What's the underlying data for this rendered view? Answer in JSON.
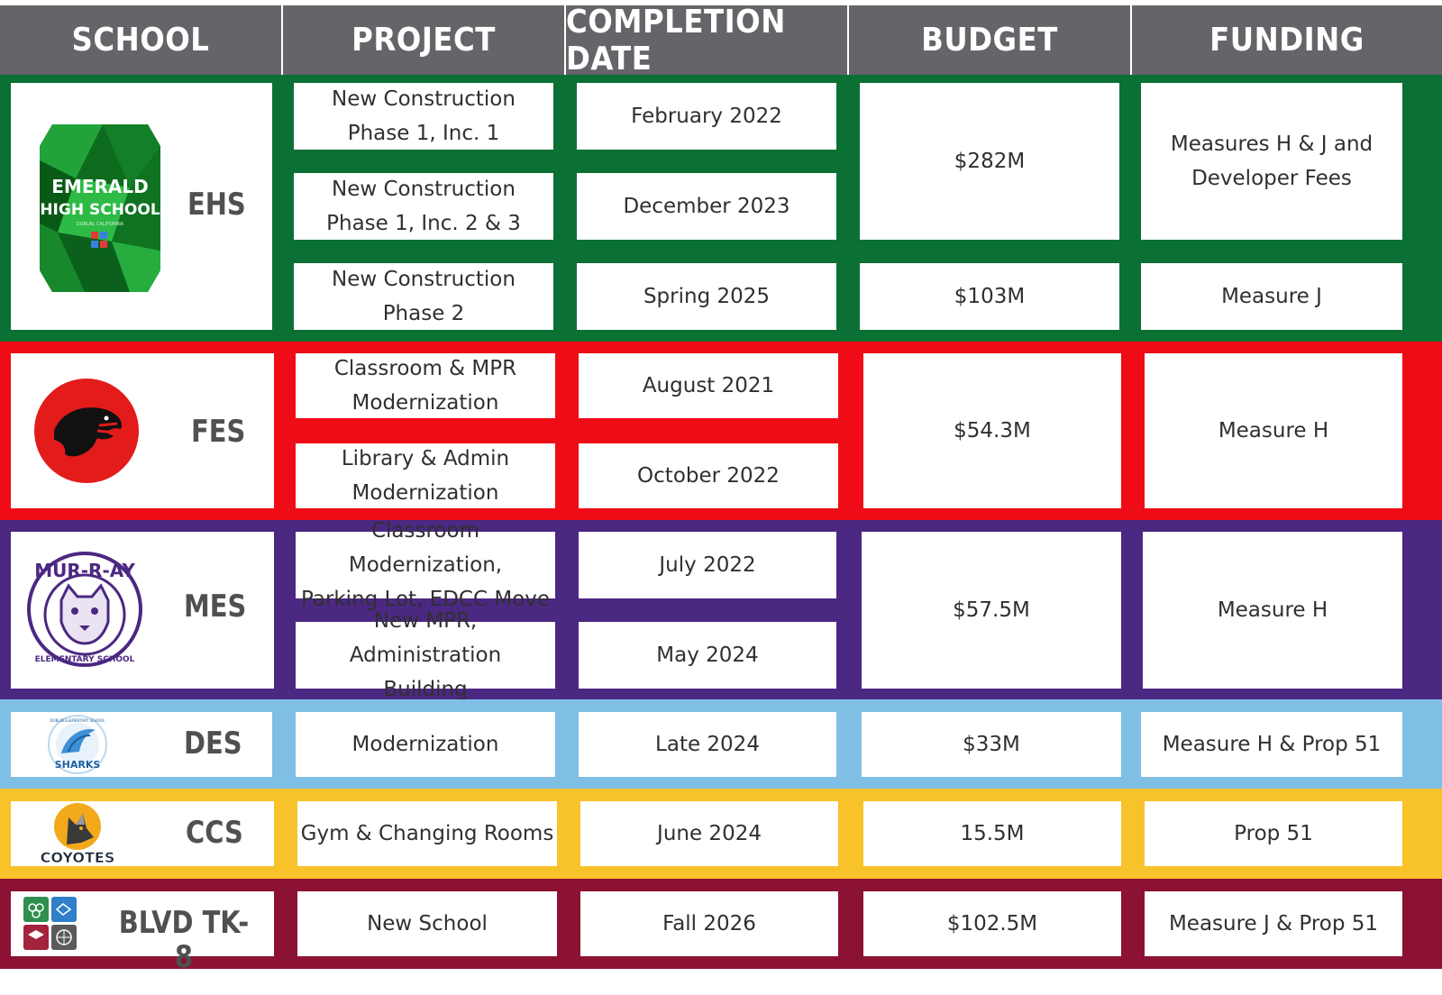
{
  "headers": {
    "school": "SCHOOL",
    "project": "PROJECT",
    "completion_date": "COMPLETION DATE",
    "budget": "BUDGET",
    "funding": "FUNDING"
  },
  "colors": {
    "header_bg": "#646469",
    "ehs": "#0a7033",
    "fes": "#ef0c16",
    "mes": "#4b2882",
    "des": "#7fbfe6",
    "ccs": "#f8c22a",
    "blvd": "#8c1233"
  },
  "rows": {
    "ehs": {
      "abbr": "EHS",
      "logo_text": {
        "line1": "EMERALD",
        "line2": "HIGH SCHOOL",
        "line3": "DUBLIN, CALIFORNIA"
      },
      "projects": [
        {
          "line1": "New Construction",
          "line2": "Phase 1, Inc. 1",
          "date": "February 2022"
        },
        {
          "line1": "New Construction",
          "line2": "Phase 1, Inc. 2 & 3",
          "date": "December 2023"
        },
        {
          "line1": "New Construction",
          "line2": "Phase 2",
          "date": "Spring 2025"
        }
      ],
      "budget_1": "$282M",
      "funding_1_line1": "Measures H & J and",
      "funding_1_line2": "Developer Fees",
      "budget_2": "$103M",
      "funding_2": "Measure J"
    },
    "fes": {
      "abbr": "FES",
      "projects": [
        {
          "line1": "Classroom & MPR",
          "line2": "Modernization",
          "date": "August 2021"
        },
        {
          "line1": "Library & Admin",
          "line2": "Modernization",
          "date": "October 2022"
        }
      ],
      "budget": "$54.3M",
      "funding": "Measure H"
    },
    "mes": {
      "abbr": "MES",
      "logo_text": {
        "top": "MUR-R-AY",
        "bottom": "ELEMENTARY SCHOOL"
      },
      "projects": [
        {
          "line1": "Classroom Modernization,",
          "line2": "Parking Lot, EDCC Move",
          "date": "July 2022"
        },
        {
          "line1": "New MPR, Administration",
          "line2": "Building",
          "date": "May 2024"
        }
      ],
      "budget": "$57.5M",
      "funding": "Measure H"
    },
    "des": {
      "abbr": "DES",
      "logo_text": {
        "top": "DUBLIN ELEMENTARY SCHOOL",
        "bottom": "SHARKS"
      },
      "project": "Modernization",
      "date": "Late 2024",
      "budget": "$33M",
      "funding": "Measure H & Prop 51"
    },
    "ccs": {
      "abbr": "CCS",
      "logo_text": "COYOTES",
      "project": "Gym & Changing Rooms",
      "date": "June 2024",
      "budget": "15.5M",
      "funding": "Prop 51"
    },
    "blvd": {
      "abbr": "BLVD TK-8",
      "project": "New School",
      "date": "Fall 2026",
      "budget": "$102.5M",
      "funding": "Measure J & Prop 51"
    }
  }
}
